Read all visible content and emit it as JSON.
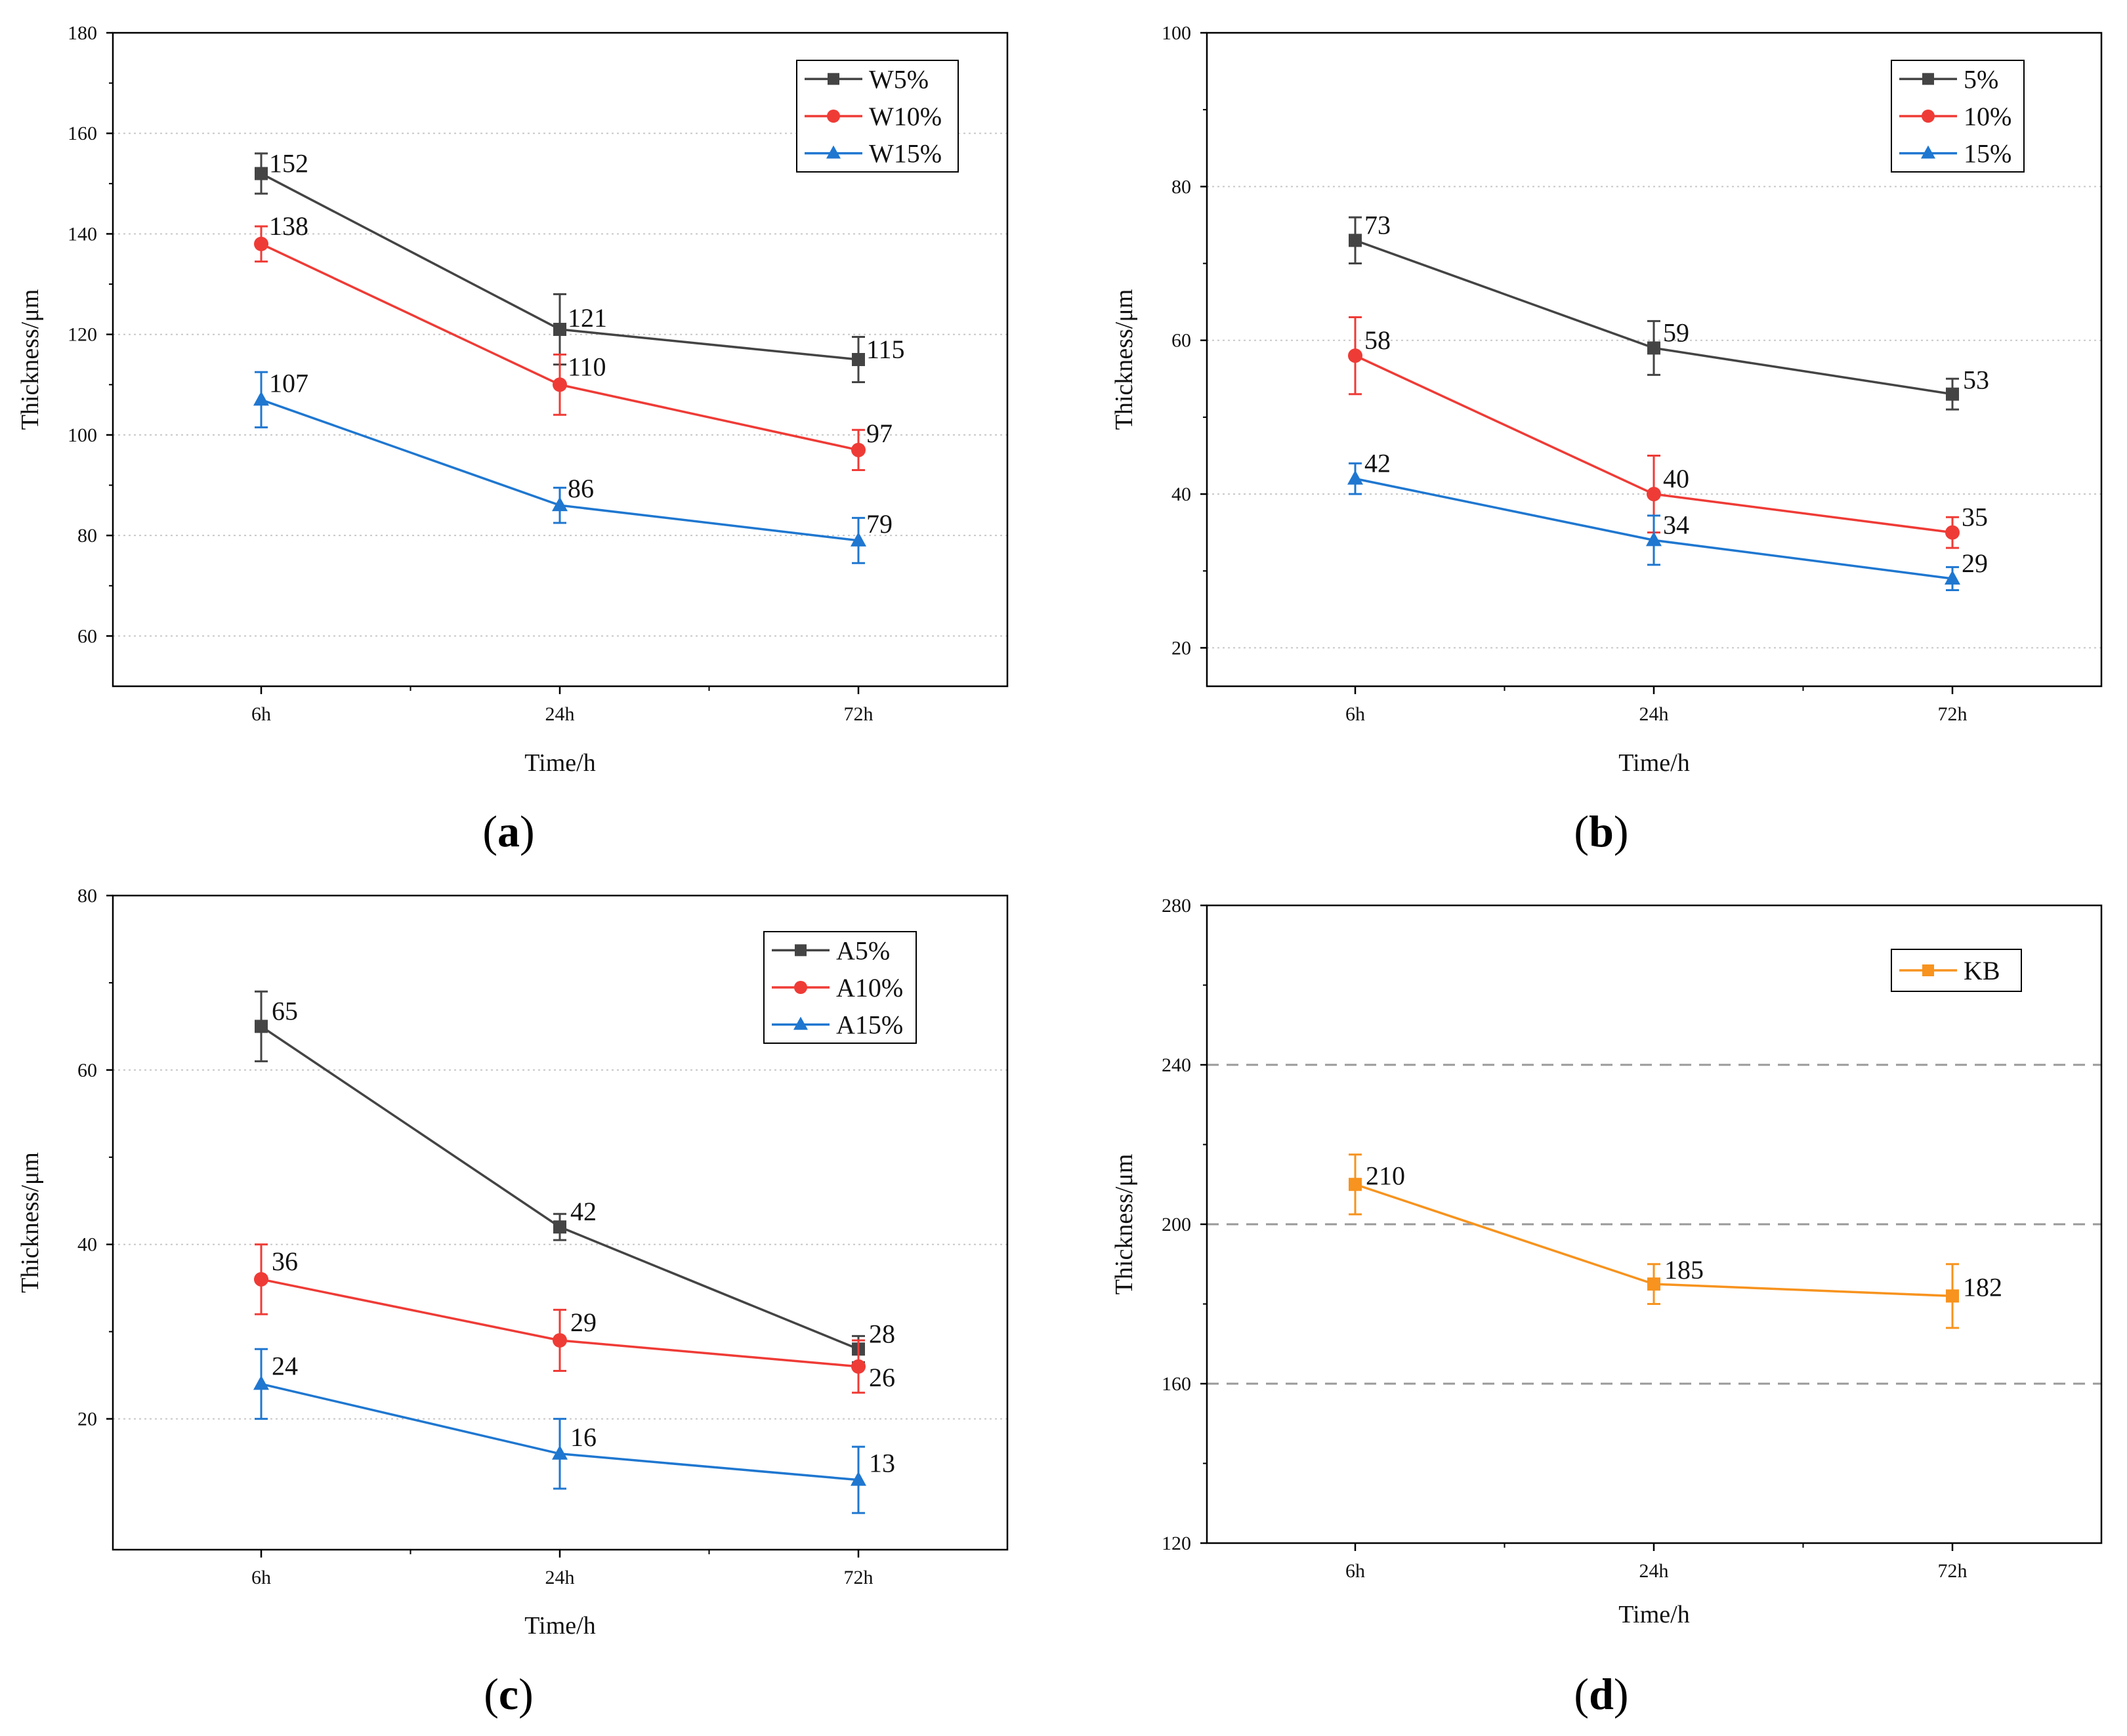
{
  "chart_data": [
    {
      "panel": "a",
      "panel_label": "a",
      "type": "line",
      "categories": [
        "6h",
        "24h",
        "72h"
      ],
      "xlabel": "Time/h",
      "ylabel": "Thickness/μm",
      "ylim": [
        50,
        180
      ],
      "yticks": [
        60,
        80,
        100,
        120,
        140,
        160,
        180
      ],
      "grid": "dotted",
      "legend": "top-right",
      "series": [
        {
          "name": "W5%",
          "color": "#444444",
          "marker": "square",
          "values": [
            152,
            121,
            115
          ],
          "errors": [
            4,
            7,
            4.5
          ],
          "labels": [
            "152",
            "121",
            "115"
          ]
        },
        {
          "name": "W10%",
          "color": "#ef3b36",
          "marker": "circle",
          "values": [
            138,
            110,
            97
          ],
          "errors": [
            3.5,
            6,
            4
          ],
          "labels": [
            "138",
            "110",
            "97"
          ]
        },
        {
          "name": "W15%",
          "color": "#1f77d0",
          "marker": "triangle",
          "values": [
            107,
            86,
            79
          ],
          "errors": [
            5.5,
            3.5,
            4.5
          ],
          "labels": [
            "107",
            "86",
            "79"
          ]
        }
      ]
    },
    {
      "panel": "b",
      "panel_label": "b",
      "type": "line",
      "categories": [
        "6h",
        "24h",
        "72h"
      ],
      "xlabel": "Time/h",
      "ylabel": "Thickness/μm",
      "ylim": [
        15,
        100
      ],
      "yticks": [
        20,
        40,
        60,
        80,
        100
      ],
      "grid": "dotted",
      "legend": "top-right",
      "series": [
        {
          "name": "5%",
          "color": "#444444",
          "marker": "square",
          "values": [
            73,
            59,
            53
          ],
          "errors": [
            3,
            3.5,
            2
          ],
          "labels": [
            "73",
            "59",
            "53"
          ]
        },
        {
          "name": "10%",
          "color": "#ef3b36",
          "marker": "circle",
          "values": [
            58,
            40,
            35
          ],
          "errors": [
            5,
            5,
            2
          ],
          "labels": [
            "58",
            "40",
            "35"
          ]
        },
        {
          "name": "15%",
          "color": "#1f77d0",
          "marker": "triangle",
          "values": [
            42,
            34,
            29
          ],
          "errors": [
            2,
            3.2,
            1.5
          ],
          "labels": [
            "42",
            "34",
            "29"
          ]
        }
      ]
    },
    {
      "panel": "c",
      "panel_label": "c",
      "type": "line",
      "categories": [
        "6h",
        "24h",
        "72h"
      ],
      "xlabel": "Time/h",
      "ylabel": "Thickness/μm",
      "ylim": [
        5,
        80
      ],
      "yticks": [
        20,
        40,
        60,
        80
      ],
      "grid": "dotted",
      "legend": "top-right",
      "series": [
        {
          "name": "A5%",
          "color": "#444444",
          "marker": "square",
          "values": [
            65,
            42,
            28
          ],
          "errors": [
            4,
            1.5,
            1.5
          ],
          "labels": [
            "65",
            "42",
            "28"
          ]
        },
        {
          "name": "A10%",
          "color": "#ef3b36",
          "marker": "circle",
          "values": [
            36,
            29,
            26
          ],
          "errors": [
            4,
            3.5,
            3
          ],
          "labels": [
            "36",
            "29",
            "26"
          ]
        },
        {
          "name": "A15%",
          "color": "#1f77d0",
          "marker": "triangle",
          "values": [
            24,
            16,
            13
          ],
          "errors": [
            4,
            4,
            3.8
          ],
          "labels": [
            "24",
            "16",
            "13"
          ]
        }
      ]
    },
    {
      "panel": "d",
      "panel_label": "d",
      "type": "line",
      "categories": [
        "6h",
        "24h",
        "72h"
      ],
      "xlabel": "Time/h",
      "ylabel": "Thickness/μm",
      "ylim": [
        120,
        280
      ],
      "yticks": [
        120,
        160,
        200,
        240,
        280
      ],
      "grid": "dashed",
      "legend": "top-right",
      "series": [
        {
          "name": "KB",
          "color": "#f7931e",
          "marker": "square",
          "values": [
            210,
            185,
            182
          ],
          "errors": [
            7.5,
            5,
            8
          ],
          "labels": [
            "210",
            "185",
            "182"
          ]
        }
      ]
    }
  ]
}
